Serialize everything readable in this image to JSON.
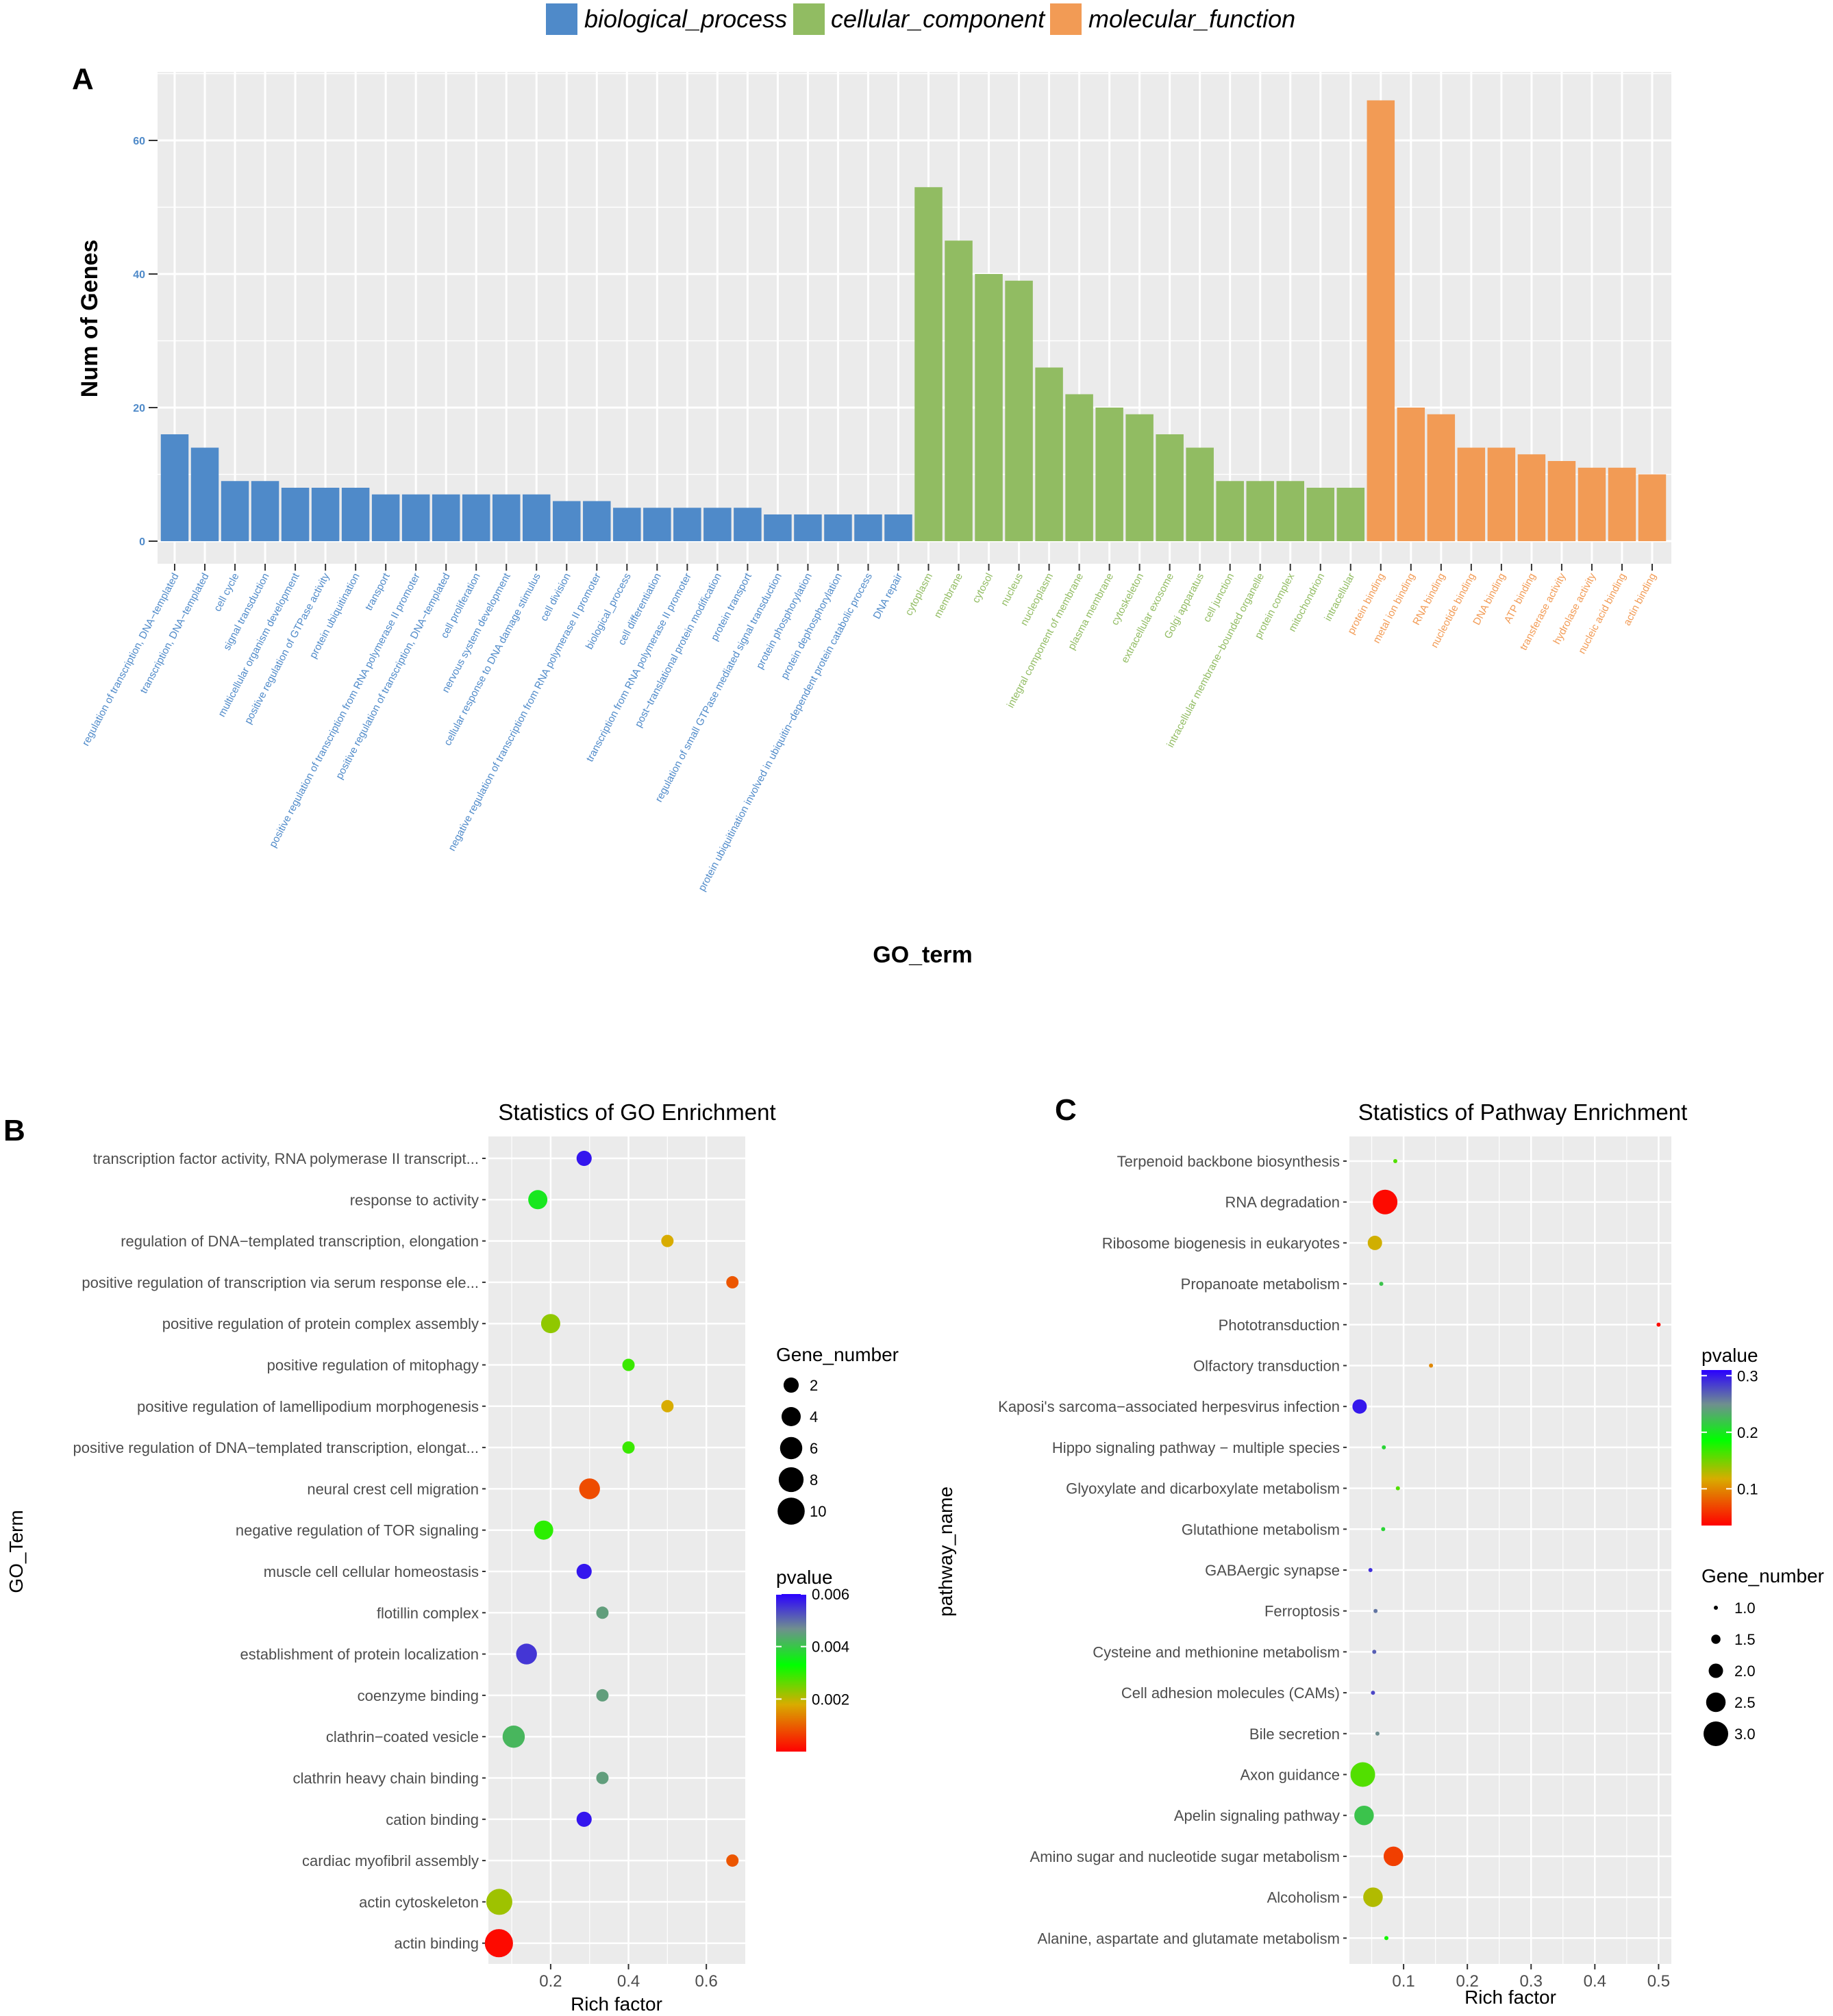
{
  "legend_top": {
    "items": [
      {
        "label": "biological_process",
        "color": "#4F8AC9"
      },
      {
        "label": "cellular_component",
        "color": "#91BC62"
      },
      {
        "label": "molecular_function",
        "color": "#F29B55"
      }
    ]
  },
  "chart_data": [
    {
      "panel": "A",
      "type": "bar",
      "title": "",
      "xlabel": "GO_term",
      "ylabel": "Num of Genes",
      "ylim": [
        0,
        70
      ],
      "yticks": [
        0,
        20,
        40,
        60
      ],
      "grid": true,
      "series": [
        {
          "name": "biological_process",
          "color": "#4F8AC9",
          "categories": [
            "regulation of transcription, DNA−templated",
            "transcription, DNA−templated",
            "cell cycle",
            "signal transduction",
            "multicellular organism development",
            "positive regulation of GTPase activity",
            "protein ubiquitination",
            "transport",
            "positive regulation of transcription from RNA polymerase II promoter",
            "positive regulation of transcription, DNA−templated",
            "cell proliferation",
            "nervous system development",
            "cellular response to DNA damage stimulus",
            "cell division",
            "negative regulation of transcription from RNA polymerase II promoter",
            "biological_process",
            "cell differentiation",
            "transcription from RNA polymerase II promoter",
            "post−translational protein modification",
            "protein transport",
            "regulation of small GTPase mediated signal transduction",
            "protein phosphorylation",
            "protein dephosphorylation",
            "protein ubiquitination involved in ubiquitin−dependent protein catabolic process",
            "DNA repair"
          ],
          "values": [
            16,
            14,
            9,
            9,
            8,
            8,
            8,
            7,
            7,
            7,
            7,
            7,
            7,
            6,
            6,
            5,
            5,
            5,
            5,
            5,
            4,
            4,
            4,
            4,
            4
          ]
        },
        {
          "name": "cellular_component",
          "color": "#91BC62",
          "categories": [
            "cytoplasm",
            "membrane",
            "cytosol",
            "nucleus",
            "nucleoplasm",
            "integral component of membrane",
            "plasma membrane",
            "cytoskeleton",
            "extracellular exosome",
            "Golgi apparatus",
            "cell junction",
            "intracellular membrane−bounded organelle",
            "protein complex",
            "mitochondrion",
            "intracellular"
          ],
          "values": [
            53,
            45,
            40,
            39,
            26,
            22,
            20,
            19,
            16,
            14,
            9,
            9,
            9,
            8,
            8
          ]
        },
        {
          "name": "molecular_function",
          "color": "#F29B55",
          "categories": [
            "protein binding",
            "metal ion binding",
            "RNA binding",
            "nucleotide binding",
            "DNA binding",
            "ATP binding",
            "transferase activity",
            "hydrolase activity",
            "nucleic acid binding",
            "actin binding"
          ],
          "values": [
            66,
            20,
            19,
            14,
            14,
            13,
            12,
            11,
            11,
            10
          ]
        }
      ]
    },
    {
      "panel": "B",
      "type": "scatter",
      "title": "Statistics of GO Enrichment",
      "xlabel": "Rich factor",
      "ylabel": "GO_Term",
      "xlim": [
        0.04,
        0.7
      ],
      "xticks": [
        0.2,
        0.4,
        0.6
      ],
      "xtick_labels": [
        "0.2",
        "0.4",
        "0.6"
      ],
      "size_legend": {
        "title": "Gene_number",
        "values": [
          2,
          4,
          6,
          8,
          10
        ]
      },
      "color_legend": {
        "title": "pvalue",
        "min": 0,
        "max": 0.006,
        "ticks": [
          0.002,
          0.004,
          0.006
        ],
        "tick_labels": [
          "0.002",
          "0.004",
          "0.006"
        ]
      },
      "points": [
        {
          "term": "transcription factor activity, RNA polymerase II transcript...",
          "x": 0.286,
          "genes": 2,
          "pvalue": 0.0058
        },
        {
          "term": "response to activity",
          "x": 0.167,
          "genes": 4,
          "pvalue": 0.0036
        },
        {
          "term": "regulation of DNA−templated transcription, elongation",
          "x": 0.5,
          "genes": 1,
          "pvalue": 0.0018
        },
        {
          "term": "positive regulation of transcription via serum response ele...",
          "x": 0.667,
          "genes": 1,
          "pvalue": 0.0009
        },
        {
          "term": "positive regulation of protein complex assembly",
          "x": 0.2,
          "genes": 4,
          "pvalue": 0.0023
        },
        {
          "term": "positive regulation of mitophagy",
          "x": 0.4,
          "genes": 1,
          "pvalue": 0.0029
        },
        {
          "term": "positive regulation of lamellipodium morphogenesis",
          "x": 0.5,
          "genes": 1,
          "pvalue": 0.0018
        },
        {
          "term": "positive regulation of DNA−templated transcription, elongat...",
          "x": 0.4,
          "genes": 1,
          "pvalue": 0.0029
        },
        {
          "term": "neural crest cell migration",
          "x": 0.3,
          "genes": 5,
          "pvalue": 0.0008
        },
        {
          "term": "negative regulation of TOR signaling",
          "x": 0.182,
          "genes": 4,
          "pvalue": 0.003
        },
        {
          "term": "muscle cell cellular homeostasis",
          "x": 0.286,
          "genes": 2,
          "pvalue": 0.0058
        },
        {
          "term": "flotillin complex",
          "x": 0.333,
          "genes": 1,
          "pvalue": 0.0045
        },
        {
          "term": "establishment of protein localization",
          "x": 0.138,
          "genes": 5,
          "pvalue": 0.0055
        },
        {
          "term": "coenzyme binding",
          "x": 0.333,
          "genes": 1,
          "pvalue": 0.0045
        },
        {
          "term": "clathrin−coated vesicle",
          "x": 0.105,
          "genes": 6,
          "pvalue": 0.0042
        },
        {
          "term": "clathrin heavy chain binding",
          "x": 0.333,
          "genes": 1,
          "pvalue": 0.0045
        },
        {
          "term": "cation binding",
          "x": 0.286,
          "genes": 2,
          "pvalue": 0.0058
        },
        {
          "term": "cardiac myofibril assembly",
          "x": 0.667,
          "genes": 1,
          "pvalue": 0.0009
        },
        {
          "term": "actin cytoskeleton",
          "x": 0.068,
          "genes": 9,
          "pvalue": 0.0022
        },
        {
          "term": "actin binding",
          "x": 0.067,
          "genes": 11,
          "pvalue": 0.0001
        }
      ]
    },
    {
      "panel": "C",
      "type": "scatter",
      "title": "Statistics of Pathway Enrichment",
      "xlabel": "Rich factor",
      "ylabel": "pathway_name",
      "xlim": [
        0.015,
        0.52
      ],
      "xticks": [
        0.1,
        0.2,
        0.3,
        0.4,
        0.5
      ],
      "xtick_labels": [
        "0.1",
        "0.2",
        "0.3",
        "0.4",
        "0.5"
      ],
      "size_legend": {
        "title": "Gene_number",
        "values": [
          1.0,
          1.5,
          2.0,
          2.5,
          3.0
        ],
        "labels": [
          "1.0",
          "1.5",
          "2.0",
          "2.5",
          "3.0"
        ]
      },
      "color_legend": {
        "title": "pvalue",
        "min": 0.035,
        "max": 0.31,
        "ticks": [
          0.1,
          0.2,
          0.3
        ],
        "tick_labels": [
          "0.1",
          "0.2",
          "0.3"
        ]
      },
      "points": [
        {
          "term": "Terpenoid backbone biosynthesis",
          "x": 0.087,
          "genes": 1,
          "pvalue": 0.16
        },
        {
          "term": "RNA degradation",
          "x": 0.071,
          "genes": 3,
          "pvalue": 0.04
        },
        {
          "term": "Ribosome biogenesis in eukaryotes",
          "x": 0.055,
          "genes": 2,
          "pvalue": 0.12
        },
        {
          "term": "Propanoate metabolism",
          "x": 0.065,
          "genes": 1,
          "pvalue": 0.22
        },
        {
          "term": "Phototransduction",
          "x": 0.5,
          "genes": 1,
          "pvalue": 0.04
        },
        {
          "term": "Olfactory transduction",
          "x": 0.143,
          "genes": 1,
          "pvalue": 0.1
        },
        {
          "term": "Kaposi's sarcoma−associated herpesvirus infection",
          "x": 0.031,
          "genes": 2,
          "pvalue": 0.3
        },
        {
          "term": "Hippo signaling pathway − multiple species",
          "x": 0.069,
          "genes": 1,
          "pvalue": 0.21
        },
        {
          "term": "Glyoxylate and dicarboxylate metabolism",
          "x": 0.091,
          "genes": 1,
          "pvalue": 0.16
        },
        {
          "term": "Glutathione metabolism",
          "x": 0.068,
          "genes": 1,
          "pvalue": 0.21
        },
        {
          "term": "GABAergic synapse",
          "x": 0.048,
          "genes": 1,
          "pvalue": 0.29
        },
        {
          "term": "Ferroptosis",
          "x": 0.056,
          "genes": 1,
          "pvalue": 0.26
        },
        {
          "term": "Cysteine and methionine metabolism",
          "x": 0.054,
          "genes": 1,
          "pvalue": 0.27
        },
        {
          "term": "Cell adhesion molecules (CAMs)",
          "x": 0.052,
          "genes": 1,
          "pvalue": 0.28
        },
        {
          "term": "Bile secretion",
          "x": 0.059,
          "genes": 1,
          "pvalue": 0.25
        },
        {
          "term": "Axon guidance",
          "x": 0.036,
          "genes": 3,
          "pvalue": 0.16
        },
        {
          "term": "Apelin signaling pathway",
          "x": 0.038,
          "genes": 2.5,
          "pvalue": 0.22
        },
        {
          "term": "Amino sugar and nucleotide sugar metabolism",
          "x": 0.084,
          "genes": 2.5,
          "pvalue": 0.065
        },
        {
          "term": "Alcoholism",
          "x": 0.052,
          "genes": 2.5,
          "pvalue": 0.13
        },
        {
          "term": "Alanine, aspartate and glutamate metabolism",
          "x": 0.073,
          "genes": 1,
          "pvalue": 0.18
        }
      ]
    }
  ],
  "panel_letters": {
    "a": "A",
    "b": "B",
    "c": "C"
  }
}
